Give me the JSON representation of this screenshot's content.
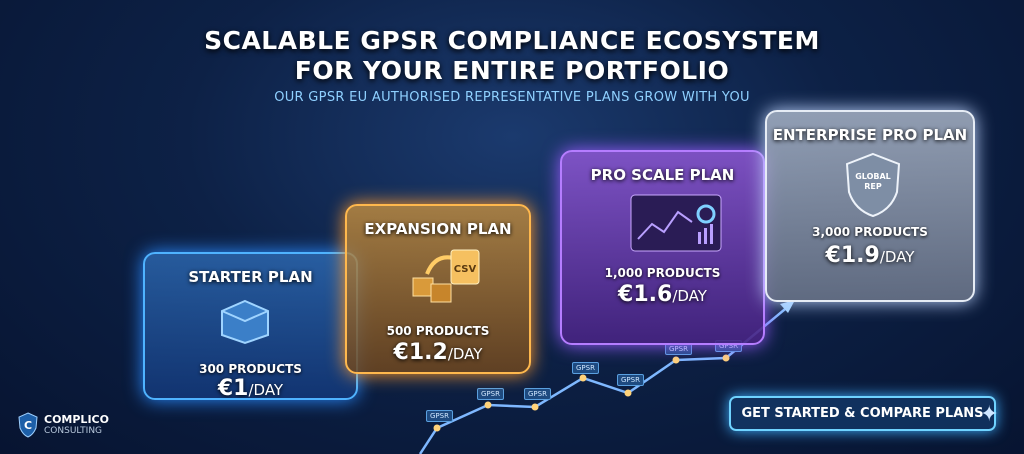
{
  "header": {
    "title_line1": "SCALABLE GPSR COMPLIANCE ECOSYSTEM",
    "title_line2": "FOR YOUR ENTIRE PORTFOLIO",
    "subtitle": "OUR GPSR EU AUTHORISED REPRESENTATIVE PLANS GROW WITH YOU"
  },
  "plans": [
    {
      "name": "STARTER PLAN",
      "products": "300 PRODUCTS",
      "price": "€1",
      "unit": "/DAY",
      "icon": "box-icon",
      "color": "#4fb3ff"
    },
    {
      "name": "EXPANSION PLAN",
      "products": "500 PRODUCTS",
      "price": "€1.2",
      "unit": "/DAY",
      "icon": "csv-export-icon",
      "color": "#ffb84d"
    },
    {
      "name": "PRO SCALE PLAN",
      "products": "1,000 PRODUCTS",
      "price": "€1.6",
      "unit": "/DAY",
      "icon": "dashboard-icon",
      "color": "#b57dff"
    },
    {
      "name": "ENTERPRISE PRO PLAN",
      "products": "3,000 PRODUCTS",
      "price": "€1.9",
      "unit": "/DAY",
      "icon": "shield-handshake-icon",
      "badge": "GLOBAL REP",
      "color": "#e6ecf5"
    }
  ],
  "growth_tags": [
    "GPSR",
    "GPSR",
    "GPSR",
    "GPSR",
    "GPSR",
    "GPSR",
    "GPSR"
  ],
  "logo": {
    "name": "COMPLICO",
    "tagline": "CONSULTING"
  },
  "cta": {
    "label": "GET STARTED & COMPARE PLANS"
  }
}
